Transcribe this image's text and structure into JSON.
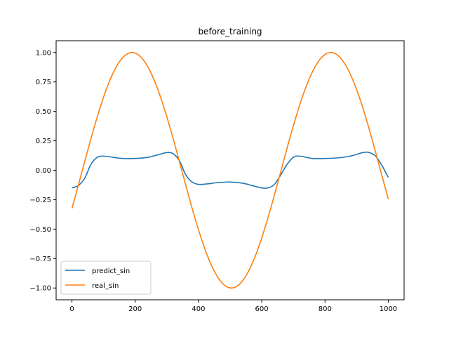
{
  "chart_data": {
    "type": "line",
    "title": "before_training",
    "xlabel": "",
    "ylabel": "",
    "xlim": [
      -50,
      1050
    ],
    "ylim": [
      -1.1,
      1.1
    ],
    "x_ticks": [
      0,
      200,
      400,
      600,
      800,
      1000
    ],
    "x_tick_labels": [
      "0",
      "200",
      "400",
      "600",
      "800",
      "1000"
    ],
    "y_ticks": [
      -1.0,
      -0.75,
      -0.5,
      -0.25,
      0.0,
      0.25,
      0.5,
      0.75,
      1.0
    ],
    "y_tick_labels": [
      "−1.00",
      "−0.75",
      "−0.50",
      "−0.25",
      "0.00",
      "0.25",
      "0.50",
      "0.75",
      "1.00"
    ],
    "grid": false,
    "legend_position": "bottom-left",
    "series": [
      {
        "name": "predict_sin",
        "color": "#1f77b4",
        "x": [
          0,
          20,
          40,
          60,
          80,
          100,
          130,
          160,
          200,
          240,
          270,
          300,
          320,
          340,
          360,
          380,
          400,
          430,
          460,
          500,
          540,
          570,
          600,
          620,
          640,
          660,
          680,
          700,
          720,
          760,
          800,
          840,
          880,
          920,
          940,
          960,
          980,
          1000
        ],
        "y": [
          -0.15,
          -0.13,
          -0.07,
          0.05,
          0.11,
          0.12,
          0.11,
          0.1,
          0.1,
          0.11,
          0.13,
          0.15,
          0.14,
          0.08,
          -0.04,
          -0.1,
          -0.12,
          -0.115,
          -0.105,
          -0.1,
          -0.11,
          -0.13,
          -0.15,
          -0.15,
          -0.12,
          -0.04,
          0.05,
          0.11,
          0.12,
          0.1,
          0.1,
          0.105,
          0.12,
          0.15,
          0.15,
          0.12,
          0.04,
          -0.06
        ]
      },
      {
        "name": "real_sin",
        "color": "#ff7f0e",
        "x_start": 0,
        "x_end": 1000,
        "amplitude": 1.0,
        "period": 628.3,
        "peak_x": 190,
        "y_start": -0.33,
        "y_end": -0.24
      }
    ]
  }
}
